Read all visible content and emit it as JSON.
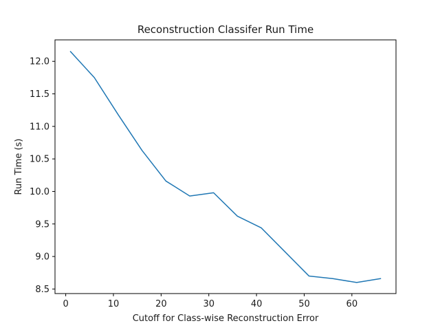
{
  "chart_data": {
    "type": "line",
    "title": "Reconstruction Classifer Run Time",
    "xlabel": "Cutoff for Class-wise Reconstruction Error",
    "ylabel": "Run Time (s)",
    "xlim": [
      -2.25,
      69.25
    ],
    "ylim": [
      8.43,
      12.33
    ],
    "xticks": [
      0,
      10,
      20,
      30,
      40,
      50,
      60
    ],
    "xtick_labels": [
      "0",
      "10",
      "20",
      "30",
      "40",
      "50",
      "60"
    ],
    "yticks": [
      8.5,
      9.0,
      9.5,
      10.0,
      10.5,
      11.0,
      11.5,
      12.0
    ],
    "ytick_labels": [
      "8.5",
      "9.0",
      "9.5",
      "10.0",
      "10.5",
      "11.0",
      "11.5",
      "12.0"
    ],
    "grid": false,
    "series": [
      {
        "color": "#1f77b4",
        "x": [
          1,
          6,
          11,
          16,
          21,
          26,
          31,
          36,
          41,
          46,
          51,
          56,
          61,
          66
        ],
        "y": [
          12.15,
          11.75,
          11.18,
          10.63,
          10.16,
          9.93,
          9.98,
          9.62,
          9.44,
          9.07,
          8.7,
          8.66,
          8.6,
          8.66
        ]
      }
    ]
  }
}
